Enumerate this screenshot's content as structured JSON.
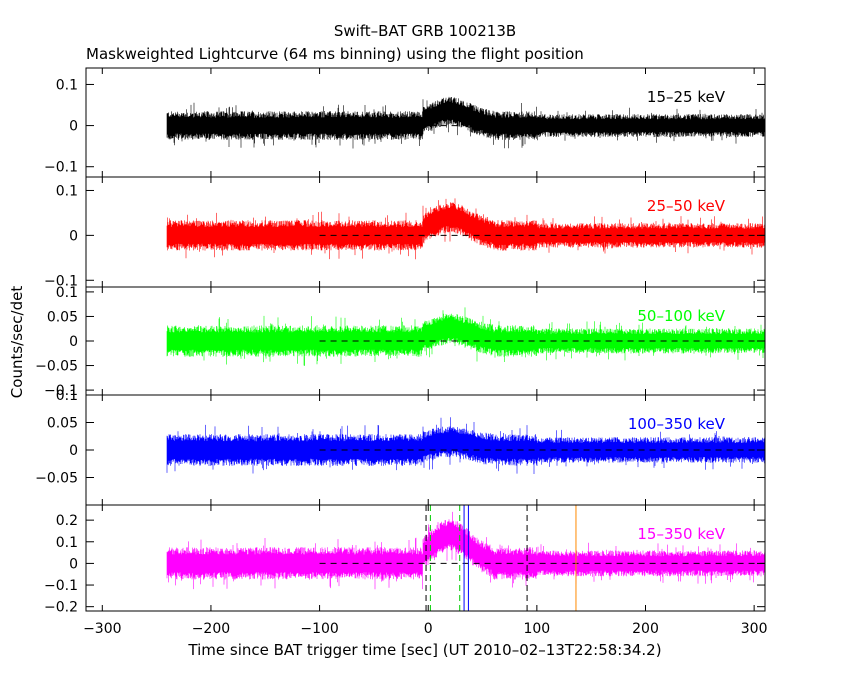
{
  "chart_data": {
    "type": "line",
    "title": "Swift–BAT GRB 100213B",
    "subtitle": "Maskweighted Lightcurve (64 ms binning) using the flight position",
    "xlabel": "Time since BAT trigger time [sec] (UT 2010–02–13T22:58:34.2)",
    "ylabel": "Counts/sec/det",
    "xlim": [
      -315,
      310
    ],
    "x_ticks": [
      -300,
      -200,
      -100,
      0,
      100,
      200,
      300
    ],
    "x_tick_labels": [
      "−300",
      "−200",
      "−100",
      "0",
      "100",
      "200",
      "300"
    ],
    "data_x_range": [
      -240,
      310
    ],
    "zero_line_x_range": [
      -100,
      310
    ],
    "grid": false,
    "panels": [
      {
        "band": "15–25 keV",
        "color": "#000000",
        "ylim": [
          -0.125,
          0.14
        ],
        "y_ticks": [
          -0.1,
          0,
          0.1
        ],
        "y_tick_labels": [
          "−0.1",
          "0",
          "0.1"
        ],
        "noise_amplitude": 0.035,
        "baseline_early": 0.0,
        "baseline_late": 0.0,
        "peak": 0.035,
        "markers": []
      },
      {
        "band": "25–50 keV",
        "color": "#ff0000",
        "ylim": [
          -0.115,
          0.13
        ],
        "y_ticks": [
          -0.1,
          0,
          0.1
        ],
        "y_tick_labels": [
          "−0.1",
          "0",
          "0.1"
        ],
        "noise_amplitude": 0.034,
        "baseline_early": 0.0,
        "baseline_late": 0.0,
        "peak": 0.04,
        "markers": []
      },
      {
        "band": "50–100 keV",
        "color": "#00ff00",
        "ylim": [
          -0.11,
          0.11
        ],
        "y_ticks": [
          -0.1,
          -0.05,
          0,
          0.05,
          0.1
        ],
        "y_tick_labels": [
          "−0.1",
          "−0.05",
          "0",
          "0.05",
          "0.1"
        ],
        "noise_amplitude": 0.032,
        "baseline_early": 0.0,
        "baseline_late": 0.0,
        "peak": 0.025,
        "markers": []
      },
      {
        "band": "100–350 keV",
        "color": "#0000ff",
        "ylim": [
          -0.1,
          0.1
        ],
        "y_ticks": [
          -0.05,
          0,
          0.05,
          0.1
        ],
        "y_tick_labels": [
          "−0.05",
          "0",
          "0.05",
          "0.1"
        ],
        "noise_amplitude": 0.029,
        "baseline_early": 0.0,
        "baseline_late": 0.0,
        "peak": 0.015,
        "markers": []
      },
      {
        "band": "15–350 keV",
        "color": "#ff00ff",
        "ylim": [
          -0.22,
          0.27
        ],
        "y_ticks": [
          -0.2,
          -0.1,
          0,
          0.1,
          0.2
        ],
        "y_tick_labels": [
          "−0.2",
          "−0.1",
          "0",
          "0.1",
          "0.2"
        ],
        "noise_amplitude": 0.075,
        "baseline_early": 0.0,
        "baseline_late": 0.0,
        "peak": 0.13,
        "markers": [
          {
            "x": -2,
            "color": "#000000",
            "style": "dashed"
          },
          {
            "x": 2,
            "color": "#00cc00",
            "style": "dashed"
          },
          {
            "x": 29,
            "color": "#00cc00",
            "style": "dashed"
          },
          {
            "x": 33,
            "color": "#0000ff",
            "style": "solid"
          },
          {
            "x": 37,
            "color": "#0000ff",
            "style": "solid"
          },
          {
            "x": 91,
            "color": "#000000",
            "style": "dashed"
          },
          {
            "x": 136,
            "color": "#ff8800",
            "style": "solid"
          }
        ]
      }
    ]
  }
}
